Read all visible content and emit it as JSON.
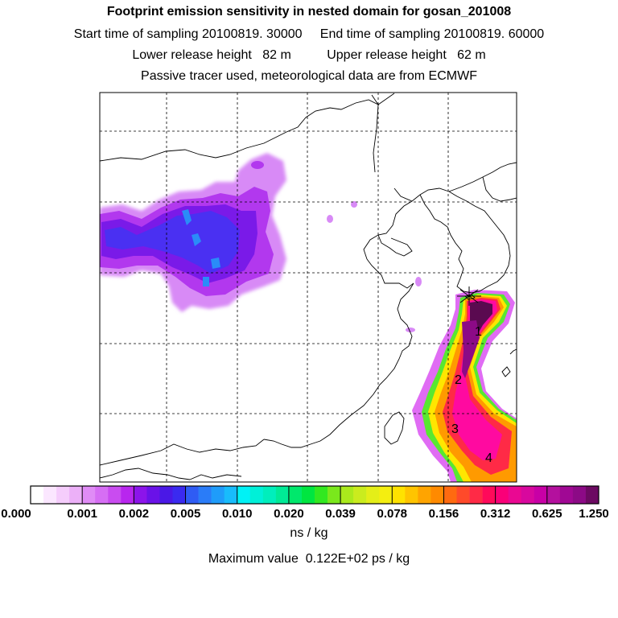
{
  "header": {
    "title": "Footprint emission sensitivity in nested domain for gosan_201008",
    "sampling_line": "Start time of sampling 20100819. 30000     End time of sampling 20100819. 60000",
    "height_line": "Lower release height   82 m          Upper release height   62 m",
    "tracer_line": "Passive tracer used, meteorological data are from ECMWF"
  },
  "colorbar": {
    "labels": [
      "0.000",
      "0.001",
      "0.002",
      "0.005",
      "0.010",
      "0.020",
      "0.039",
      "0.078",
      "0.156",
      "0.312",
      "0.625",
      "1.250"
    ],
    "colors": [
      "#ffffff",
      "#fbe7ff",
      "#f5cdfc",
      "#ecb0f8",
      "#e08cf6",
      "#d66ef4",
      "#c94cf0",
      "#b826ee",
      "#8c14ea",
      "#6a12e8",
      "#4a18e6",
      "#3a2af0",
      "#2f5cf4",
      "#2a7cf8",
      "#1f9cfa",
      "#18bcfc",
      "#00f2f6",
      "#00f0d8",
      "#00eebc",
      "#00ea96",
      "#00e86c",
      "#00e640",
      "#32e820",
      "#7ae81c",
      "#aaea1c",
      "#caec1e",
      "#e4ee18",
      "#f4ee10",
      "#ffe200",
      "#ffc400",
      "#ffa400",
      "#ff8a00",
      "#ff6a10",
      "#ff4a2a",
      "#ff2a46",
      "#ff0a5a",
      "#fa0078",
      "#ea0892",
      "#d8089e",
      "#c800a6",
      "#b4109e",
      "#a00894",
      "#8c0a86",
      "#6c0a62"
    ],
    "units": "ns / kg",
    "max_value_text": "Maximum value  0.122E+02 ps / kg"
  },
  "map": {
    "release_markers": [
      "1",
      "2",
      "3",
      "4"
    ],
    "plume_colors": {
      "outer": "#e06cf4",
      "magenta": "#ff0aa0",
      "yellow": "#ffe600",
      "green": "#58e830",
      "orange": "#ff9a00",
      "red": "#ff2a46",
      "core": "#5a0a50"
    },
    "inland_cloud_colors": [
      "#d88af6",
      "#b238ee",
      "#7a1ae8",
      "#4a30f2",
      "#2a8cf8"
    ]
  }
}
